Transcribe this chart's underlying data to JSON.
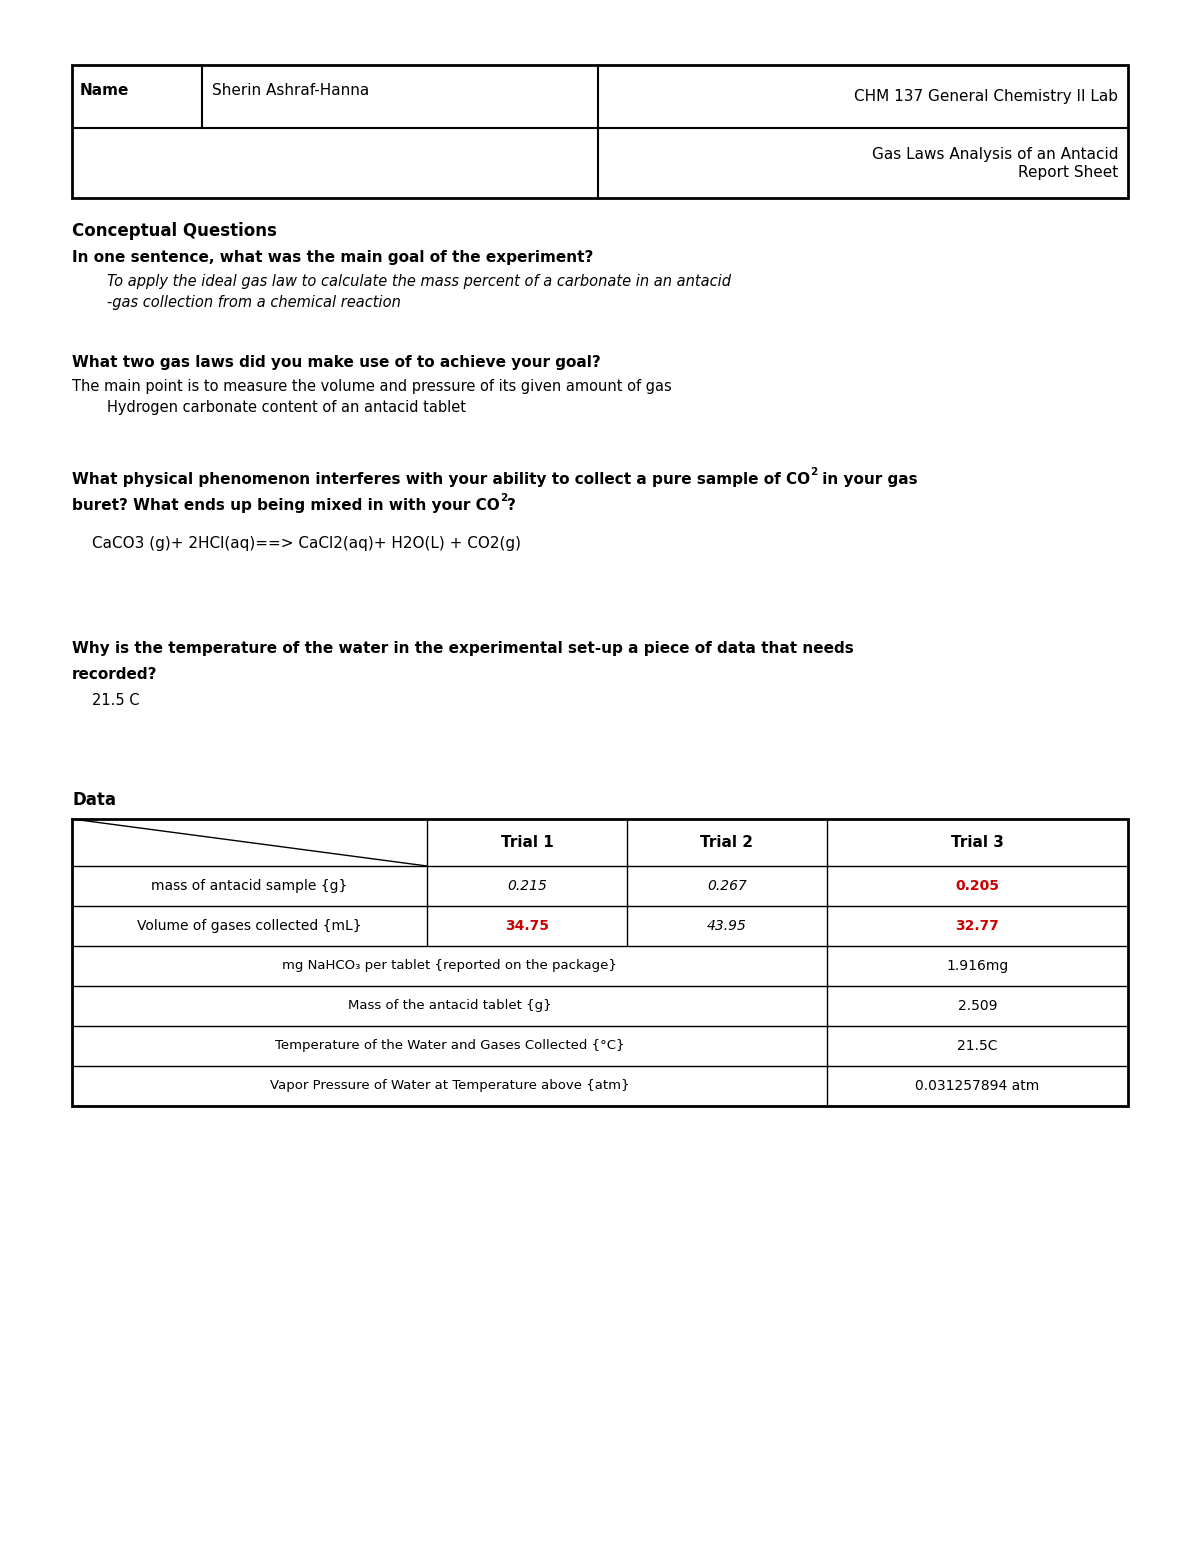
{
  "bg": "#ffffff",
  "header": {
    "name_label": "Name",
    "name_value": "Sherin Ashraf-Hanna",
    "course": "CHM 137 General Chemistry II Lab",
    "doc_line1": "Gas Laws Analysis of an Antacid",
    "doc_line2": "Report Sheet"
  },
  "section_cq": "Conceptual Questions",
  "q1_question": "In one sentence, what was the main goal of the experiment?",
  "q1_ans1": "To apply the ideal gas law to calculate the mass percent of a carbonate in an antacid",
  "q1_ans2": "-gas collection from a chemical reaction",
  "q2_question": "What two gas laws did you make use of to achieve your goal?",
  "q2_ans1": "The main point is to measure the volume and pressure of its given amount of gas",
  "q2_ans2": "Hydrogen carbonate content of an antacid tablet",
  "q3_q1a": "What physical phenomenon interferes with your ability to collect a pure sample of CO",
  "q3_q1b": " in your gas",
  "q3_q2a": "buret? What ends up being mixed in with your CO",
  "q3_q2b": "?",
  "q3_answer": "CaCO3 (g)+ 2HCl(aq)==> CaCl2(aq)+ H2O(L) + CO2(g)",
  "q4_q1": "Why is the temperature of the water in the experimental set-up a piece of data that needs",
  "q4_q2": "recorded?",
  "q4_answer": "21.5 C",
  "data_title": "Data",
  "tbl_headers": [
    "",
    "Trial 1",
    "Trial 2",
    "Trial 3"
  ],
  "r1_label": "mass of antacid sample {g}",
  "r1_v1": "0.215",
  "r1_v2": "0.267",
  "r1_v3": "0.205",
  "r1_c1": "black",
  "r1_c2": "black",
  "r1_c3": "#cc0000",
  "r2_label": "Volume of gases collected {mL}",
  "r2_v1": "34.75",
  "r2_v2": "43.95",
  "r2_v3": "32.77",
  "r2_c1": "#cc0000",
  "r2_c2": "black",
  "r2_c3": "#cc0000",
  "mr1_label": "mg NaHCO₃ per tablet {reported on the package}",
  "mr1_val": "1.916mg",
  "mr2_label": "Mass of the antacid tablet {g}",
  "mr2_val": "2.509",
  "mr3_label": "Temperature of the Water and Gases Collected {°C}",
  "mr3_val": "21.5C",
  "mr4_label": "Vapor Pressure of Water at Temperature above {atm}",
  "mr4_val": "0.031257894 atm"
}
